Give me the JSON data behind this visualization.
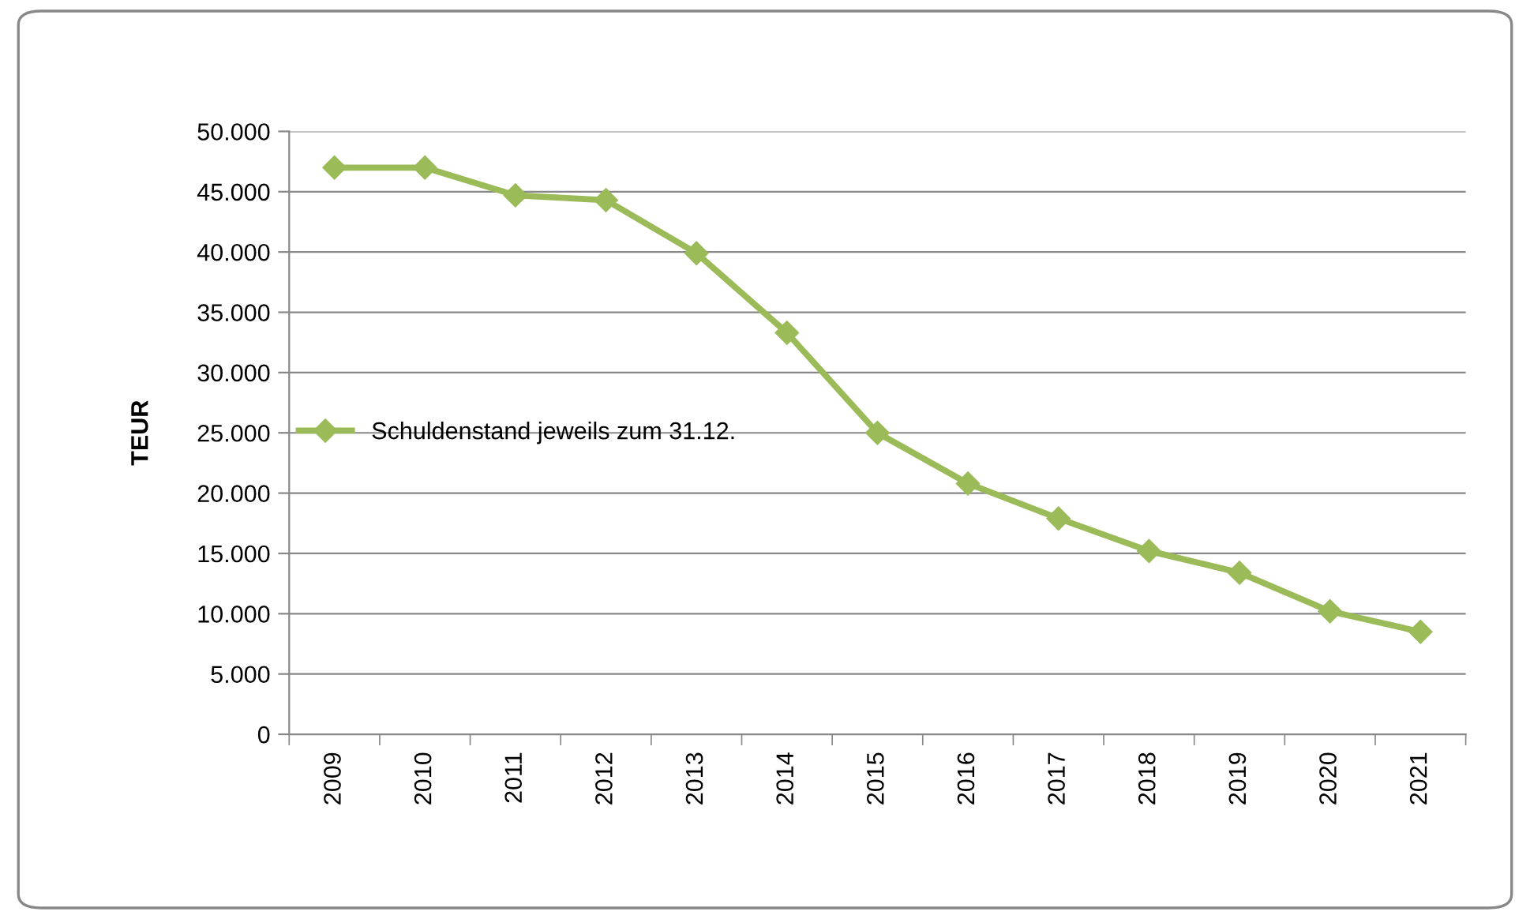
{
  "chart_data": {
    "type": "line",
    "ylabel": "TEUR",
    "categories": [
      "2009",
      "2010",
      "2011",
      "2012",
      "2013",
      "2014",
      "2015",
      "2016",
      "2017",
      "2018",
      "2019",
      "2020",
      "2021"
    ],
    "series": [
      {
        "name": "Schuldenstand jeweils zum 31.12.",
        "color": "#9bbb59",
        "values": [
          47000,
          47000,
          44700,
          44300,
          39900,
          33300,
          25000,
          20800,
          17900,
          15200,
          13400,
          10200,
          8500
        ]
      }
    ],
    "ylim": [
      0,
      50000
    ],
    "yticks": [
      0,
      {
        "value": 5000,
        "label": "5.000"
      },
      {
        "value": 10000,
        "label": "10.000"
      },
      {
        "value": 15000,
        "label": "15.000"
      },
      {
        "value": 20000,
        "label": "20.000"
      },
      {
        "value": 25000,
        "label": "25.000"
      },
      {
        "value": 30000,
        "label": "30.000"
      },
      {
        "value": 35000,
        "label": "35.000"
      },
      {
        "value": 40000,
        "label": "40.000"
      },
      {
        "value": 45000,
        "label": "45.000"
      },
      {
        "value": 50000,
        "label": "50.000"
      }
    ],
    "grid": "y",
    "legend": "center left",
    "marker": "diamond",
    "line_style": "solid"
  }
}
